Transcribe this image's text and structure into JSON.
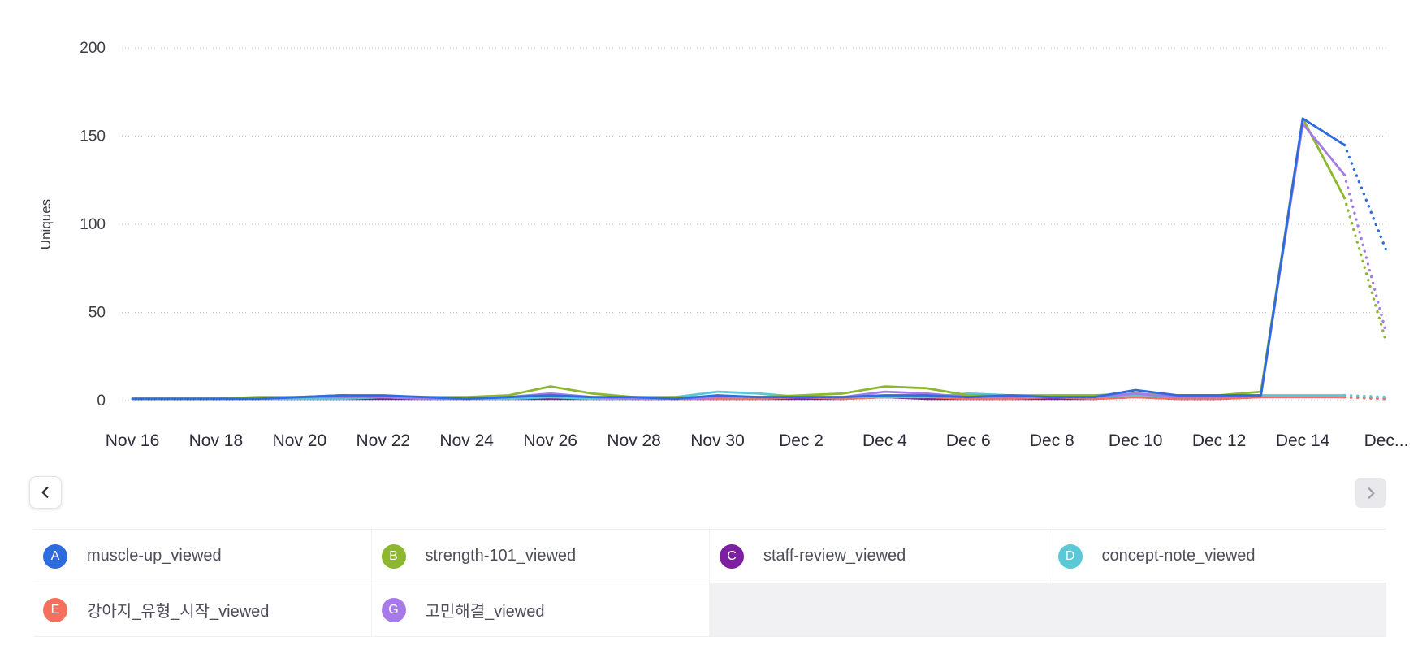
{
  "chart_data": {
    "type": "line",
    "ylabel": "Uniques",
    "ylim": [
      0,
      200
    ],
    "y_ticks": [
      0,
      50,
      100,
      150,
      200
    ],
    "grid": true,
    "legend_position": "bottom",
    "dashed_tail_segments": 1,
    "x": [
      "Nov 16",
      "Nov 17",
      "Nov 18",
      "Nov 19",
      "Nov 20",
      "Nov 21",
      "Nov 22",
      "Nov 23",
      "Nov 24",
      "Nov 25",
      "Nov 26",
      "Nov 27",
      "Nov 28",
      "Nov 29",
      "Nov 30",
      "Dec 1",
      "Dec 2",
      "Dec 3",
      "Dec 4",
      "Dec 5",
      "Dec 6",
      "Dec 7",
      "Dec 8",
      "Dec 9",
      "Dec 10",
      "Dec 11",
      "Dec 12",
      "Dec 13",
      "Dec 14",
      "Dec 15",
      "Dec 16"
    ],
    "x_tick_indices": [
      0,
      2,
      4,
      6,
      8,
      10,
      12,
      14,
      16,
      18,
      20,
      22,
      24,
      26,
      28,
      30
    ],
    "x_tick_labels": [
      "Nov 16",
      "Nov 18",
      "Nov 20",
      "Nov 22",
      "Nov 24",
      "Nov 26",
      "Nov 28",
      "Nov 30",
      "Dec 2",
      "Dec 4",
      "Dec 6",
      "Dec 8",
      "Dec 10",
      "Dec 12",
      "Dec 14",
      "Dec..."
    ],
    "draw_order": [
      2,
      4,
      3,
      1,
      5,
      0
    ],
    "series": [
      {
        "name": "muscle-up_viewed",
        "letter": "A",
        "color": "#2d6bdf",
        "values": [
          1,
          1,
          1,
          1,
          2,
          3,
          3,
          2,
          1,
          2,
          3,
          2,
          2,
          1,
          3,
          2,
          2,
          2,
          3,
          3,
          2,
          3,
          2,
          2,
          6,
          3,
          3,
          3,
          160,
          145,
          85
        ]
      },
      {
        "name": "strength-101_viewed",
        "letter": "B",
        "color": "#8cb72e",
        "values": [
          1,
          1,
          1,
          2,
          2,
          3,
          2,
          2,
          2,
          3,
          8,
          4,
          2,
          2,
          2,
          2,
          3,
          4,
          8,
          7,
          3,
          3,
          3,
          3,
          4,
          3,
          3,
          5,
          160,
          115,
          33
        ]
      },
      {
        "name": "staff-review_viewed",
        "letter": "C",
        "color": "#7c1fa0",
        "values": [
          1,
          1,
          1,
          1,
          1,
          1,
          1,
          1,
          1,
          1,
          1,
          1,
          1,
          1,
          1,
          1,
          1,
          1,
          2,
          1,
          1,
          1,
          1,
          1,
          2,
          1,
          1,
          2,
          2,
          2,
          1
        ]
      },
      {
        "name": "concept-note_viewed",
        "letter": "D",
        "color": "#5bc8d6",
        "values": [
          1,
          1,
          1,
          1,
          1,
          1,
          2,
          1,
          1,
          1,
          2,
          1,
          1,
          2,
          5,
          4,
          2,
          2,
          2,
          2,
          4,
          3,
          2,
          2,
          3,
          2,
          2,
          3,
          3,
          3,
          2
        ]
      },
      {
        "name": "강아지_유형_시작_viewed",
        "letter": "E",
        "color": "#f4705c",
        "values": [
          1,
          1,
          1,
          1,
          2,
          3,
          2,
          1,
          1,
          1,
          2,
          1,
          1,
          1,
          1,
          1,
          2,
          1,
          2,
          2,
          1,
          1,
          2,
          1,
          2,
          1,
          1,
          2,
          2,
          2,
          1
        ]
      },
      {
        "name": "고민해결_viewed",
        "letter": "G",
        "color": "#a67ae8",
        "values": [
          1,
          1,
          1,
          1,
          2,
          2,
          2,
          1,
          1,
          2,
          4,
          2,
          1,
          1,
          2,
          2,
          2,
          2,
          5,
          4,
          2,
          2,
          2,
          2,
          4,
          2,
          2,
          3,
          157,
          128,
          38
        ]
      }
    ]
  },
  "legend": {
    "columns": 4
  }
}
